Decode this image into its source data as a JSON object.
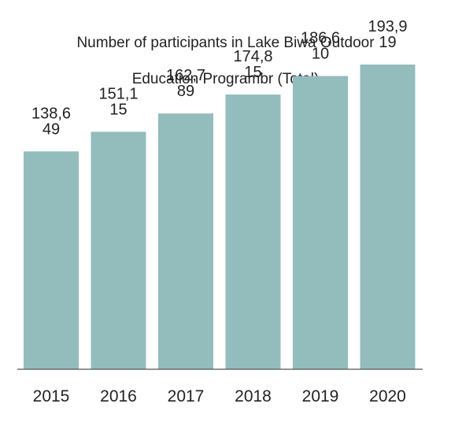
{
  "chart_data": {
    "type": "bar",
    "title_lines": [
      "Number of participants in Lake Biwa Outdoor",
      "Education Programbr (Total)"
    ],
    "categories": [
      "2015",
      "2016",
      "2017",
      "2018",
      "2019",
      "2020"
    ],
    "values": [
      138649,
      151115,
      162789,
      174815,
      186610,
      193919
    ],
    "data_labels": [
      [
        "138,6",
        "49"
      ],
      [
        "151,1",
        "15"
      ],
      [
        "162,7",
        "89"
      ],
      [
        "174,8",
        "15"
      ],
      [
        "186,6",
        "10"
      ],
      [
        "193,9",
        "19"
      ]
    ],
    "xlabel": "",
    "ylabel": "",
    "ylim": [
      0,
      235000
    ],
    "grid": false,
    "legend": "none",
    "colors": {
      "bar": "#93bcbd",
      "axis": "#555555",
      "text": "#222222"
    }
  }
}
